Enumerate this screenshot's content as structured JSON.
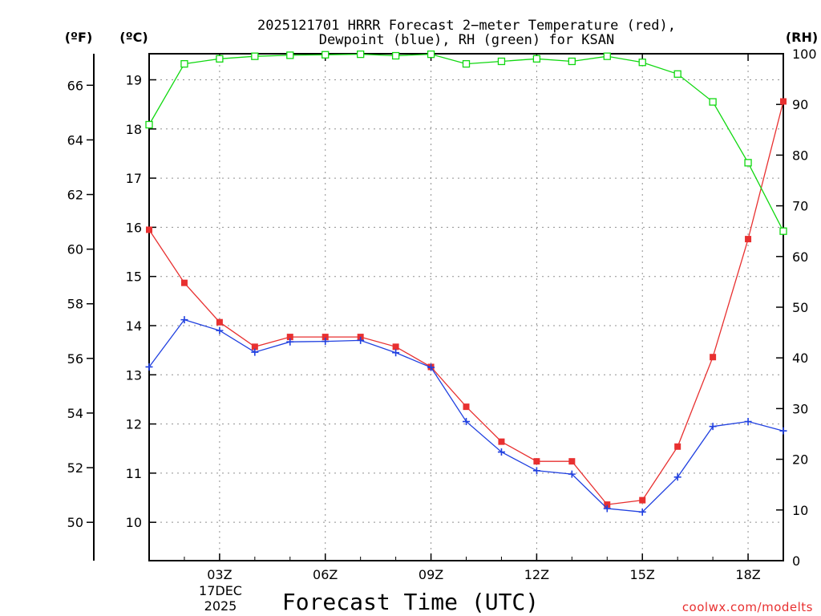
{
  "title_line1": "2025121701 HRRR Forecast 2−meter Temperature (red),",
  "title_line2": "Dewpoint (blue), RH (green) for KSAN",
  "unit_f": "(ºF)",
  "unit_c": "(ºC)",
  "unit_rh": "(RH)",
  "xlabel": "Forecast Time (UTC)",
  "date_line1": "17DEC",
  "date_line2": "2025",
  "credit": "coolwx.com/modelts",
  "colors": {
    "temperature": "#e83030",
    "dewpoint": "#2040e0",
    "rh": "#10d810",
    "grid": "#909090",
    "credit": "#e83030"
  },
  "chart_data": {
    "type": "line",
    "title": "2025121701 HRRR Forecast 2-meter Temperature (red), Dewpoint (blue), RH (green) for KSAN",
    "xlabel": "Forecast Time (UTC)",
    "x_hours": [
      1,
      2,
      3,
      4,
      5,
      6,
      7,
      8,
      9,
      10,
      11,
      12,
      13,
      14,
      15,
      16,
      17,
      18,
      19
    ],
    "xlim": [
      1,
      19
    ],
    "x_ticks": [
      {
        "hour": 3,
        "label": "03Z"
      },
      {
        "hour": 6,
        "label": "06Z"
      },
      {
        "hour": 9,
        "label": "09Z"
      },
      {
        "hour": 12,
        "label": "12Z"
      },
      {
        "hour": 15,
        "label": "15Z"
      },
      {
        "hour": 18,
        "label": "18Z"
      }
    ],
    "c_axis": {
      "label": "(ºC)",
      "lim": [
        9.22,
        19.53
      ],
      "ticks": [
        "10",
        "11",
        "12",
        "13",
        "14",
        "15",
        "16",
        "17",
        "18",
        "19"
      ]
    },
    "f_axis": {
      "label": "(ºF)",
      "ticks": [
        "50",
        "52",
        "54",
        "56",
        "58",
        "60",
        "62",
        "64",
        "66"
      ]
    },
    "rh_axis": {
      "label": "(RH)",
      "lim": [
        0,
        100
      ],
      "ticks": [
        "0",
        "10",
        "20",
        "30",
        "40",
        "50",
        "60",
        "70",
        "80",
        "90",
        "100"
      ]
    },
    "series": [
      {
        "name": "Temperature",
        "axis": "C",
        "color": "#e83030",
        "marker": "square-filled",
        "values": [
          15.95,
          14.87,
          14.07,
          13.57,
          13.77,
          13.77,
          13.77,
          13.57,
          13.16,
          12.35,
          11.64,
          11.24,
          11.24,
          10.36,
          10.45,
          11.54,
          13.36,
          15.76,
          18.56
        ]
      },
      {
        "name": "Dewpoint",
        "axis": "C",
        "color": "#2040e0",
        "marker": "plus",
        "values": [
          13.16,
          14.12,
          13.9,
          13.46,
          13.67,
          13.68,
          13.7,
          13.45,
          13.15,
          12.05,
          11.43,
          11.05,
          10.98,
          10.28,
          10.21,
          10.92,
          11.95,
          12.05,
          11.86
        ]
      },
      {
        "name": "RH",
        "axis": "RH",
        "color": "#10d810",
        "marker": "square-open",
        "values": [
          86,
          98,
          99,
          99.5,
          99.7,
          99.8,
          99.9,
          99.6,
          99.9,
          98,
          98.5,
          99,
          98.5,
          99.5,
          98.3,
          96,
          90.5,
          78.5,
          65
        ]
      }
    ]
  }
}
